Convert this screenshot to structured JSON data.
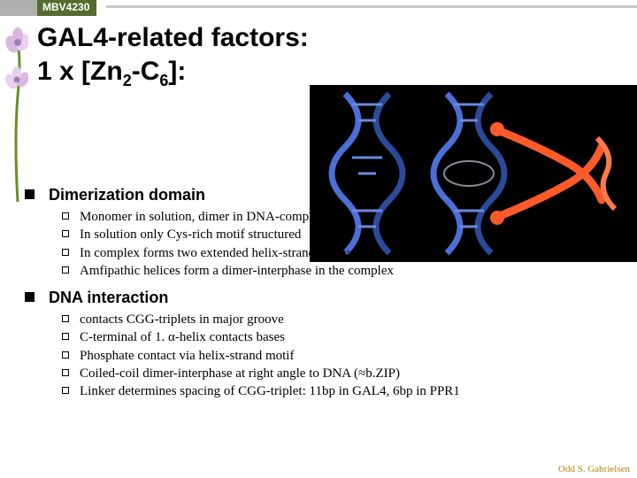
{
  "course_code": "MBV4230",
  "title_lines": [
    "GAL4-related factors:",
    "1 x [Zn<sub>2</sub>-C<sub>6</sub>]:"
  ],
  "sections": [
    {
      "heading": "Dimerization domain",
      "items": [
        "Monomer in solution, dimer in DNA-complex",
        "In solution only Cys-rich motif structured",
        "In complex forms two extended helix-strand motives",
        "Amfipathic helices form a dimer-interphase in the complex"
      ]
    },
    {
      "heading": "DNA interaction",
      "items": [
        "contacts CGG-triplets in major groove",
        "C-terminal of 1. α-helix contacts bases",
        "Phosphate contact via helix-strand motif",
        "Coiled-coil dimer-interphase at right angle to DNA (≈b.ZIP)",
        "Linker determines spacing of CGG-triplet: 11bp in GAL4, 6bp in PPR1"
      ]
    }
  ],
  "footer": "Odd S. Gabrielsen",
  "decor": {
    "stem": "#6b8e23",
    "petal1": "#d8b8e0",
    "petal2": "#e8d0ee",
    "center": "#a080b0",
    "barGrey": "#b0b0b0",
    "barOlive": "#556b2f"
  },
  "illustration": {
    "bg": "#000000",
    "dna_blue": "#4a6fd8",
    "dna_blue_dark": "#2a4a9a",
    "protein": "#ff5a2a",
    "highlight": "#e0e8ff"
  }
}
